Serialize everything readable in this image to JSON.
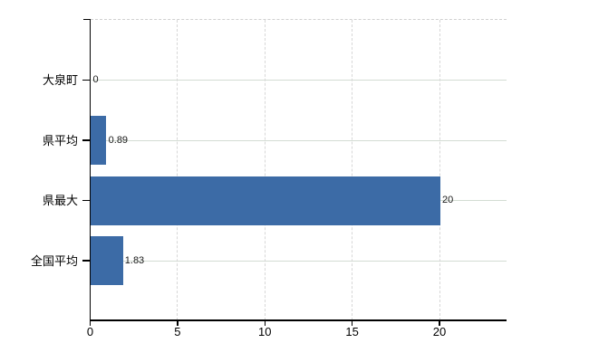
{
  "chart_data": {
    "type": "bar",
    "orientation": "horizontal",
    "title": "",
    "xlabel": "",
    "ylabel": "",
    "categories": [
      "大泉町",
      "県平均",
      "県最大",
      "全国平均"
    ],
    "values": [
      0,
      0.89,
      20,
      1.83
    ],
    "value_labels": [
      "0",
      "0.89",
      "20",
      "1.83"
    ],
    "x_ticks": [
      "0",
      "5",
      "10",
      "15",
      "20"
    ],
    "x_tick_values": [
      0,
      5,
      10,
      15,
      20
    ],
    "xlim": [
      0,
      23.8
    ],
    "grid": "on",
    "legend": "none",
    "colors": {
      "bar": "#3c6ba6",
      "axis": "#000000",
      "h_gridline": "#d3dcd3",
      "v_gridline": "#d7d7d7",
      "top_border": "#d0d0d0",
      "tick_label": "#000000",
      "value_label": "#1a1a1a",
      "background": "#ffffff"
    }
  }
}
